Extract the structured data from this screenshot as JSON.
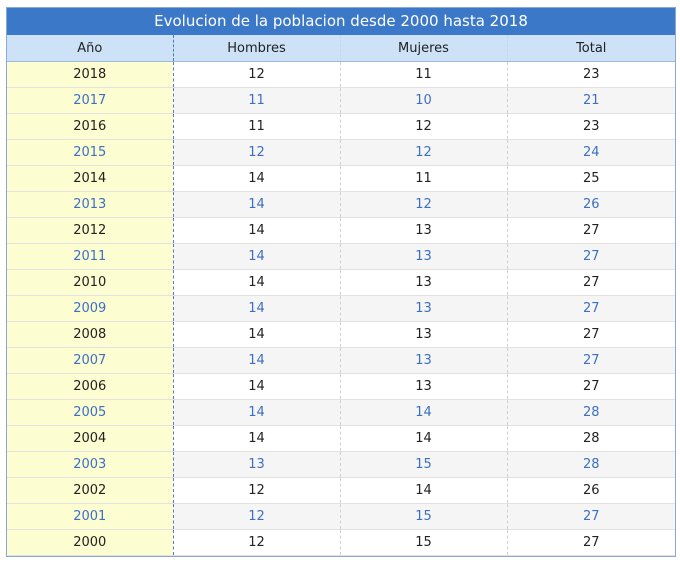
{
  "table": {
    "title": "Evolucion de la poblacion desde 2000 hasta 2018",
    "headers": {
      "year": "Año",
      "men": "Hombres",
      "women": "Mujeres",
      "total": "Total"
    },
    "rows": [
      {
        "year": "2018",
        "men": "12",
        "women": "11",
        "total": "23"
      },
      {
        "year": "2017",
        "men": "11",
        "women": "10",
        "total": "21"
      },
      {
        "year": "2016",
        "men": "11",
        "women": "12",
        "total": "23"
      },
      {
        "year": "2015",
        "men": "12",
        "women": "12",
        "total": "24"
      },
      {
        "year": "2014",
        "men": "14",
        "women": "11",
        "total": "25"
      },
      {
        "year": "2013",
        "men": "14",
        "women": "12",
        "total": "26"
      },
      {
        "year": "2012",
        "men": "14",
        "women": "13",
        "total": "27"
      },
      {
        "year": "2011",
        "men": "14",
        "women": "13",
        "total": "27"
      },
      {
        "year": "2010",
        "men": "14",
        "women": "13",
        "total": "27"
      },
      {
        "year": "2009",
        "men": "14",
        "women": "13",
        "total": "27"
      },
      {
        "year": "2008",
        "men": "14",
        "women": "13",
        "total": "27"
      },
      {
        "year": "2007",
        "men": "14",
        "women": "13",
        "total": "27"
      },
      {
        "year": "2006",
        "men": "14",
        "women": "13",
        "total": "27"
      },
      {
        "year": "2005",
        "men": "14",
        "women": "14",
        "total": "28"
      },
      {
        "year": "2004",
        "men": "14",
        "women": "14",
        "total": "28"
      },
      {
        "year": "2003",
        "men": "13",
        "women": "15",
        "total": "28"
      },
      {
        "year": "2002",
        "men": "12",
        "women": "14",
        "total": "26"
      },
      {
        "year": "2001",
        "men": "12",
        "women": "15",
        "total": "27"
      },
      {
        "year": "2000",
        "men": "12",
        "women": "15",
        "total": "27"
      }
    ]
  },
  "colors": {
    "title_bg": "#3b78c8",
    "header_bg": "#cde1f7",
    "year_col_bg": "#fdfdd2",
    "alt_row_text": "#3d6fc2",
    "alt_row_bg": "#f5f5f5"
  }
}
